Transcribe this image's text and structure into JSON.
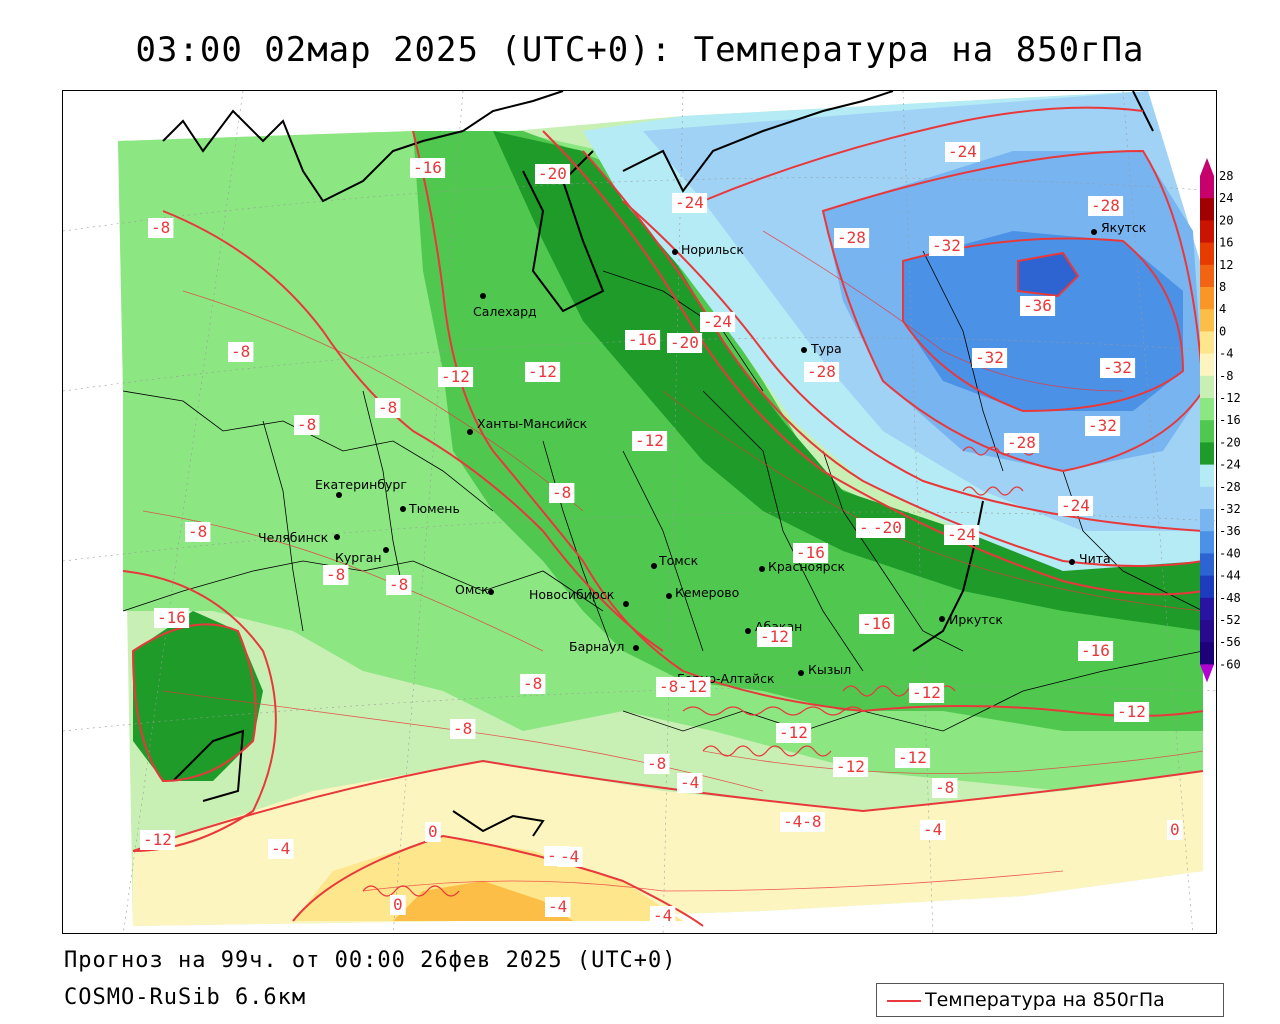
{
  "title": "03:00 02мар 2025 (UTC+0): Температура на 850гПа",
  "forecast_text": "Прогноз на 99ч. от 00:00 26фев 2025 (UTC+0)",
  "model_text": "COSMO-RuSib 6.6км",
  "legend_label": "Температура на 850гПа",
  "colors": {
    "isoline": "#e8383b",
    "background": "#ffffff"
  },
  "colorbar": {
    "levels": [
      "28",
      "24",
      "20",
      "16",
      "12",
      "8",
      "4",
      "0",
      "-4",
      "-8",
      "-12",
      "-16",
      "-20",
      "-24",
      "-28",
      "-32",
      "-36",
      "-40",
      "-44",
      "-48",
      "-52",
      "-56",
      "-60"
    ],
    "bands": [
      "#c8006e",
      "#a00000",
      "#c81400",
      "#e63c00",
      "#f06414",
      "#f89628",
      "#fcbe46",
      "#fde68c",
      "#fdf5c0",
      "#c8f0b4",
      "#8ce682",
      "#50c850",
      "#1e9b28",
      "#b4ebf5",
      "#a0d2f5",
      "#78b4f0",
      "#4b91e6",
      "#2d64d2",
      "#1e3cbe",
      "#2814a0",
      "#280a8c",
      "#1e0078",
      "#7800b4"
    ],
    "top_arrow": "#c8006e",
    "bottom_arrow": "#b400d2"
  },
  "cities": [
    {
      "name": "Якутск"
    },
    {
      "name": "Норильск"
    },
    {
      "name": "Салехард"
    },
    {
      "name": "Тура"
    },
    {
      "name": "Ханты-Мансийск"
    },
    {
      "name": "Екатеринбург"
    },
    {
      "name": "Тюмень"
    },
    {
      "name": "Челябинск"
    },
    {
      "name": "Курган"
    },
    {
      "name": "Омск"
    },
    {
      "name": "Новосибирск"
    },
    {
      "name": "Томск"
    },
    {
      "name": "Кемерово"
    },
    {
      "name": "Красноярск"
    },
    {
      "name": "Абакан"
    },
    {
      "name": "Иркутск"
    },
    {
      "name": "Барнаул"
    },
    {
      "name": "Горно-Алтайск"
    },
    {
      "name": "Кызыл"
    },
    {
      "name": "Чита"
    }
  ],
  "contour_labels": [
    {
      "v": "-24"
    },
    {
      "v": "-28"
    },
    {
      "v": "-20"
    },
    {
      "v": "-24"
    },
    {
      "v": "-16"
    },
    {
      "v": "-8"
    },
    {
      "v": "-28"
    },
    {
      "v": "-32"
    },
    {
      "v": "-36"
    },
    {
      "v": "-24"
    },
    {
      "v": "-20"
    },
    {
      "v": "-16"
    },
    {
      "v": "-8"
    },
    {
      "v": "-12"
    },
    {
      "v": "-12"
    },
    {
      "v": "-28"
    },
    {
      "v": "-32"
    },
    {
      "v": "-32"
    },
    {
      "v": "-8"
    },
    {
      "v": "-8"
    },
    {
      "v": "-28"
    },
    {
      "v": "-32"
    },
    {
      "v": "-12"
    },
    {
      "v": "-8"
    },
    {
      "v": "-8"
    },
    {
      "v": "-24"
    },
    {
      "v": "-20"
    },
    {
      "v": "-24"
    },
    {
      "v": "-16"
    },
    {
      "v": "-20"
    },
    {
      "v": "-8"
    },
    {
      "v": "-8"
    },
    {
      "v": "-16"
    },
    {
      "v": "-12"
    },
    {
      "v": "-16"
    },
    {
      "v": "-16"
    },
    {
      "v": "-8"
    },
    {
      "v": "-8-12"
    },
    {
      "v": "-12"
    },
    {
      "v": "-8"
    },
    {
      "v": "-12"
    },
    {
      "v": "-12"
    },
    {
      "v": "-12"
    },
    {
      "v": "-12"
    },
    {
      "v": "-8"
    },
    {
      "v": "-8"
    },
    {
      "v": "-4"
    },
    {
      "v": "-4-8"
    },
    {
      "v": "-4"
    },
    {
      "v": "-4"
    },
    {
      "v": "-12"
    },
    {
      "v": "-4"
    },
    {
      "v": "0"
    },
    {
      "v": "-4"
    },
    {
      "v": "0"
    },
    {
      "v": "-4"
    },
    {
      "v": "-4"
    },
    {
      "v": "0"
    }
  ]
}
